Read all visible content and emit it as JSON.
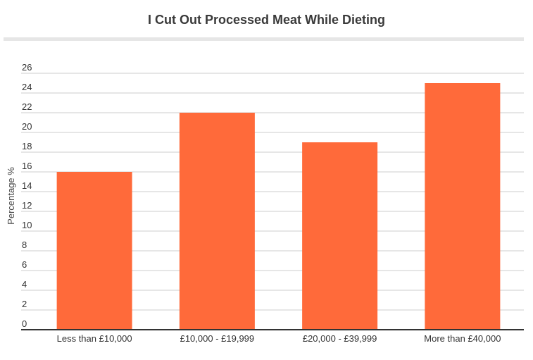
{
  "chart_data": {
    "type": "bar",
    "title": "I Cut Out Processed Meat While Dieting",
    "xlabel": "",
    "ylabel": "Percentage %",
    "categories": [
      "Less than £10,000",
      "£10,000 - £19,999",
      "£20,000 - £39,999",
      "More than £40,000"
    ],
    "values": [
      16,
      22,
      19,
      25
    ],
    "ylim": [
      0,
      26
    ],
    "yticks": [
      0,
      2,
      4,
      6,
      8,
      10,
      12,
      14,
      16,
      18,
      20,
      22,
      24,
      26
    ],
    "grid": true,
    "bar_color": "#ff6a3a",
    "grid_color": "#cccccc"
  }
}
